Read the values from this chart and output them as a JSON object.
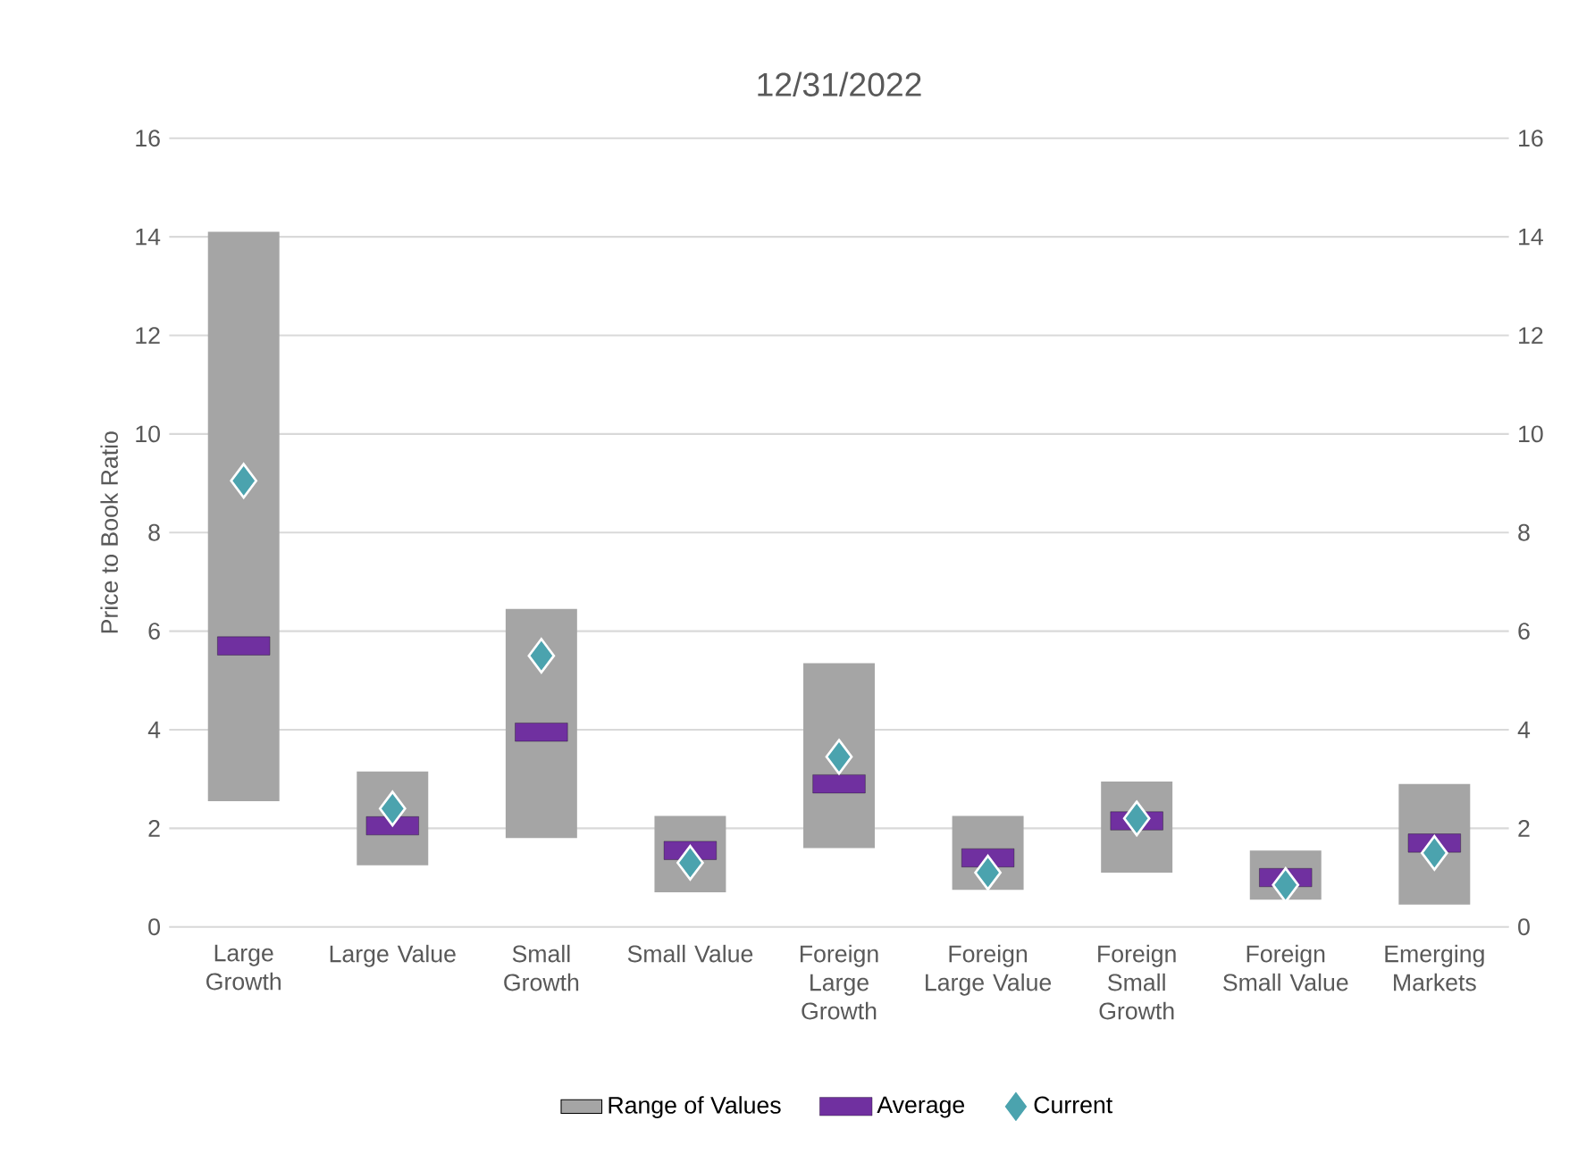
{
  "chart_data": {
    "type": "bar",
    "title": "12/31/2022",
    "ylabel": "Price to Book Ratio",
    "categories": [
      "Large Growth",
      "Large Value",
      "Small Growth",
      "Small Value",
      "Foreign Large Growth",
      "Foreign Large Value",
      "Foreign Small Growth",
      "Foreign Small Value",
      "Emerging Markets"
    ],
    "series": [
      {
        "name": "Range of Values",
        "color": "#a5a5a5",
        "base": [
          2.55,
          1.25,
          1.8,
          0.7,
          1.6,
          0.75,
          1.1,
          0.55,
          0.45
        ],
        "values": [
          11.55,
          1.9,
          4.65,
          1.55,
          3.75,
          1.5,
          1.85,
          1.0,
          2.45
        ]
      },
      {
        "name": "Average",
        "type": "scatter",
        "marker": "square",
        "color": "#7030a0",
        "values": [
          5.7,
          2.05,
          3.95,
          1.55,
          2.9,
          1.4,
          2.15,
          1.0,
          1.7
        ]
      },
      {
        "name": "Current",
        "type": "scatter",
        "marker": "diamond",
        "color": "#4ba3ae",
        "values": [
          9.05,
          2.4,
          5.5,
          1.3,
          3.45,
          1.1,
          2.2,
          0.85,
          1.5
        ]
      }
    ],
    "ylim": [
      0,
      16
    ],
    "yticks": [
      0,
      2,
      4,
      6,
      8,
      10,
      12,
      14,
      16
    ],
    "y2lim": [
      0,
      16
    ],
    "y2ticks": [
      0,
      2,
      4,
      6,
      8,
      10,
      12,
      14,
      16
    ],
    "grid": "y",
    "legend": "bottom"
  }
}
